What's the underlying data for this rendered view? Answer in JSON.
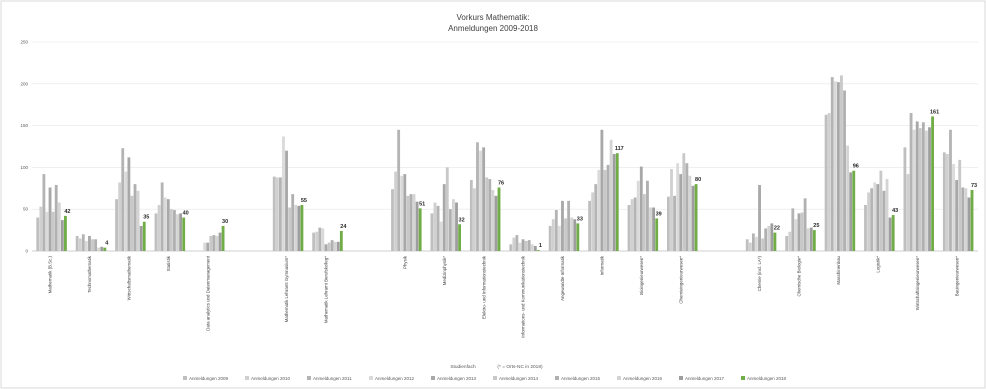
{
  "chart_data": {
    "type": "bar",
    "title": "Vorkurs Mathematik:",
    "subtitle": "Anmeldungen 2009-2018",
    "xlabel": "Studienfach",
    "note": "(* = Orts-NC in 2018)",
    "ylabel": "",
    "ylim": [
      0,
      250
    ],
    "yticks": [
      0,
      50,
      100,
      150,
      200,
      250
    ],
    "grid": true,
    "legend_position": "bottom",
    "colors": [
      "#bfbfbf",
      "#d0d0d0",
      "#b4b4b4",
      "#dadada",
      "#a8a8a8",
      "#c8c8c8",
      "#b0b0b0",
      "#d4d4d4",
      "#9e9e9e",
      "#70ad47"
    ],
    "categories": [
      "Mathematik (B.Sc.)",
      "Technomathematik",
      "Wirtschaftsmathematik",
      "Statistik",
      "Data analytics und Datenmanagement",
      "",
      "Mathematik Lehramt Gymnasium*",
      "Mathematik Lehramt Berufskolleg*",
      "",
      "Physik",
      "Medizinphysik*",
      "Elektro- und Informationstechnik",
      "Informations- und Kommunikationstechnik",
      "Angewandte Informatik",
      "Informatik",
      "Bioingenieurwesen*",
      "Chemieingenieurwesen*",
      "",
      "Chemie (incl. LA*)",
      "Chemische Biologie*",
      "Maschinenbau",
      "Logistik*",
      "Wirtschaftsingenieurwesen*",
      "Bauingenieurwesen*"
    ],
    "series": [
      {
        "name": "Anmeldungen 2009",
        "values": [
          40,
          18,
          62,
          45,
          null,
          null,
          89,
          22,
          null,
          74,
          45,
          85,
          8,
          30,
          60,
          55,
          65,
          null,
          14,
          18,
          163,
          55,
          124,
          118
        ]
      },
      {
        "name": "Anmeldungen 2010",
        "values": [
          53,
          15,
          82,
          55,
          null,
          null,
          88,
          23,
          null,
          95,
          58,
          75,
          16,
          38,
          70,
          62,
          98,
          null,
          10,
          23,
          165,
          70,
          92,
          116
        ]
      },
      {
        "name": "Anmeldungen 2011",
        "values": [
          92,
          20,
          123,
          82,
          null,
          null,
          88,
          28,
          null,
          145,
          54,
          130,
          19,
          49,
          80,
          64,
          66,
          null,
          21,
          51,
          208,
          75,
          165,
          145
        ]
      },
      {
        "name": "Anmeldungen 2012",
        "values": [
          47,
          12,
          95,
          64,
          10,
          null,
          137,
          27,
          null,
          90,
          35,
          120,
          10,
          30,
          97,
          84,
          105,
          null,
          17,
          38,
          203,
          82,
          145,
          104
        ]
      },
      {
        "name": "Anmeldungen 2013",
        "values": [
          76,
          18,
          112,
          62,
          10,
          null,
          120,
          8,
          null,
          92,
          80,
          124,
          14,
          60,
          145,
          101,
          92,
          null,
          79,
          45,
          202,
          80,
          155,
          85
        ]
      },
      {
        "name": "Anmeldungen 2014",
        "values": [
          47,
          14,
          66,
          50,
          18,
          null,
          52,
          10,
          null,
          66,
          100,
          88,
          12,
          39,
          97,
          68,
          117,
          null,
          15,
          46,
          210,
          96,
          147,
          109
        ]
      },
      {
        "name": "Anmeldungen 2015",
        "values": [
          79,
          14,
          80,
          49,
          19,
          null,
          68,
          13,
          null,
          68,
          50,
          86,
          13,
          60,
          103,
          84,
          105,
          null,
          27,
          63,
          192,
          72,
          154,
          76
        ]
      },
      {
        "name": "Anmeldungen 2016",
        "values": [
          58,
          4,
          72,
          44,
          18,
          null,
          55,
          11,
          null,
          68,
          62,
          73,
          8,
          40,
          133,
          52,
          90,
          null,
          30,
          27,
          126,
          86,
          144,
          75
        ]
      },
      {
        "name": "Anmeldungen 2017",
        "values": [
          37,
          5,
          30,
          45,
          22,
          null,
          54,
          11,
          null,
          59,
          58,
          66,
          6,
          38,
          116,
          52,
          78,
          null,
          33,
          28,
          94,
          40,
          148,
          64
        ]
      },
      {
        "name": "Anmeldungen 2018",
        "values": [
          42,
          4,
          35,
          40,
          30,
          null,
          55,
          24,
          null,
          51,
          32,
          76,
          1,
          33,
          117,
          39,
          80,
          null,
          22,
          25,
          96,
          43,
          161,
          73
        ]
      }
    ],
    "data_labels": [
      42,
      4,
      35,
      40,
      30,
      null,
      55,
      24,
      null,
      51,
      32,
      76,
      1,
      33,
      117,
      39,
      80,
      null,
      22,
      25,
      96,
      43,
      161,
      73
    ]
  }
}
